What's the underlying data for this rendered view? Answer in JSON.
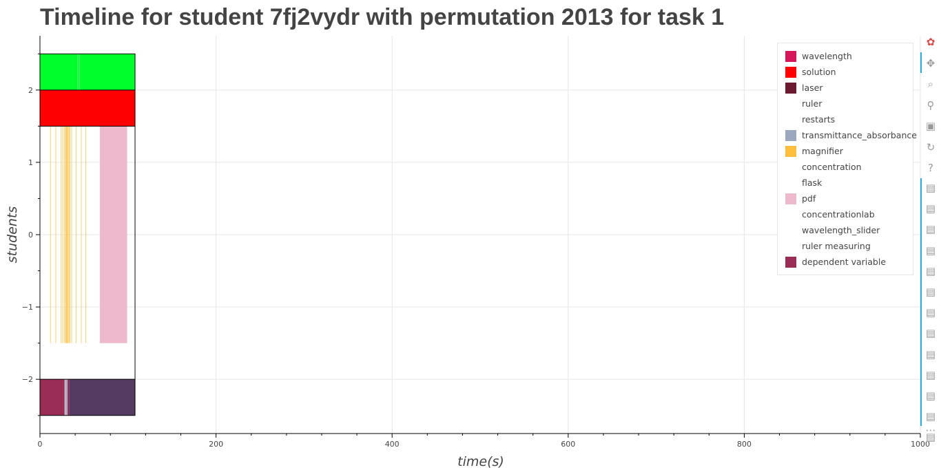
{
  "title": "Timeline for student 7fj2vydr with permutation 2013 for task 1",
  "chart_data": {
    "type": "timeline",
    "xlabel": "time(s)",
    "ylabel": "students",
    "xlim": [
      0,
      1000
    ],
    "ylim": [
      -2.75,
      2.75
    ],
    "x_ticks": [
      0,
      200,
      400,
      600,
      800,
      1000
    ],
    "x_tick_labels": [
      "0",
      "200",
      "400",
      "600",
      "800",
      "1000"
    ],
    "y_ticks": [
      -2,
      -1,
      0,
      1,
      2
    ],
    "y_tick_labels": [
      "−2",
      "−1",
      "0",
      "1",
      "2"
    ],
    "grid": true,
    "legend_position": "top-right",
    "outline": {
      "x0": 0,
      "x1": 108,
      "y0": -2.5,
      "y1": 2.5
    },
    "rows": [
      {
        "label": "green",
        "y0": 2,
        "y1": 2.5,
        "color": "#00ff2a",
        "segments": [
          [
            0,
            108
          ]
        ]
      },
      {
        "label": "solution",
        "y0": 1.5,
        "y1": 2,
        "color": "#ff0000",
        "segments": [
          [
            0,
            108
          ]
        ]
      },
      {
        "label": "pdf",
        "y0": -1.5,
        "y1": 1.5,
        "color": "#eeb9cd",
        "segments": [
          [
            68,
            99
          ]
        ]
      },
      {
        "label": "dependent variable",
        "y0": -2.5,
        "y1": -2,
        "color": "#992d55",
        "segments": [
          [
            0,
            28
          ],
          [
            31,
            33
          ]
        ]
      },
      {
        "label": "purple",
        "y0": -2.5,
        "y1": -2,
        "color": "#553a61",
        "segments": [
          [
            33,
            108
          ]
        ]
      },
      {
        "label": "transmittance_absorbance",
        "y0": -2.5,
        "y1": -2,
        "color": "#9ca8bd",
        "segments": [
          [
            28.5,
            30.5
          ]
        ]
      }
    ],
    "magnifier_events": {
      "y0": -1.5,
      "y1": 1.5,
      "color": "#ffbe3b",
      "x": [
        12,
        18,
        24,
        26,
        28,
        29,
        30,
        30.5,
        31,
        32,
        33,
        34,
        36,
        41,
        47,
        52
      ]
    },
    "green_marks": {
      "color": "#5bff75",
      "x": [
        43,
        45
      ]
    },
    "legend": [
      {
        "label": "wavelength",
        "color": "#d6165a"
      },
      {
        "label": "solution",
        "color": "#ff0000"
      },
      {
        "label": "laser",
        "color": "#6b1a32"
      },
      {
        "label": "ruler",
        "color": ""
      },
      {
        "label": "restarts",
        "color": ""
      },
      {
        "label": "transmittance_absorbance",
        "color": "#9ca8bd"
      },
      {
        "label": "magnifier",
        "color": "#ffbe3b"
      },
      {
        "label": "concentration",
        "color": ""
      },
      {
        "label": "flask",
        "color": ""
      },
      {
        "label": "pdf",
        "color": "#eeb9cd"
      },
      {
        "label": "concentrationlab",
        "color": ""
      },
      {
        "label": "wavelength_slider",
        "color": ""
      },
      {
        "label": "ruler measuring",
        "color": ""
      },
      {
        "label": "dependent variable",
        "color": "#992d55"
      }
    ]
  },
  "toolbar": {
    "tools": [
      {
        "name": "bokeh-logo-icon",
        "glyph": "✿",
        "color": "#e0443e"
      },
      {
        "name": "pan-icon",
        "glyph": "✥",
        "color": "#999999"
      },
      {
        "name": "box-zoom-icon",
        "glyph": "⌕",
        "color": "#999999"
      },
      {
        "name": "wheel-zoom-icon",
        "glyph": "⚲",
        "color": "#999999"
      },
      {
        "name": "save-icon",
        "glyph": "▣",
        "color": "#999999"
      },
      {
        "name": "reset-icon",
        "glyph": "↻",
        "color": "#999999"
      },
      {
        "name": "help-icon",
        "glyph": "?",
        "color": "#999999"
      }
    ],
    "hover_count": 13,
    "hover_glyph": "▤",
    "more_glyph": "⋯"
  }
}
